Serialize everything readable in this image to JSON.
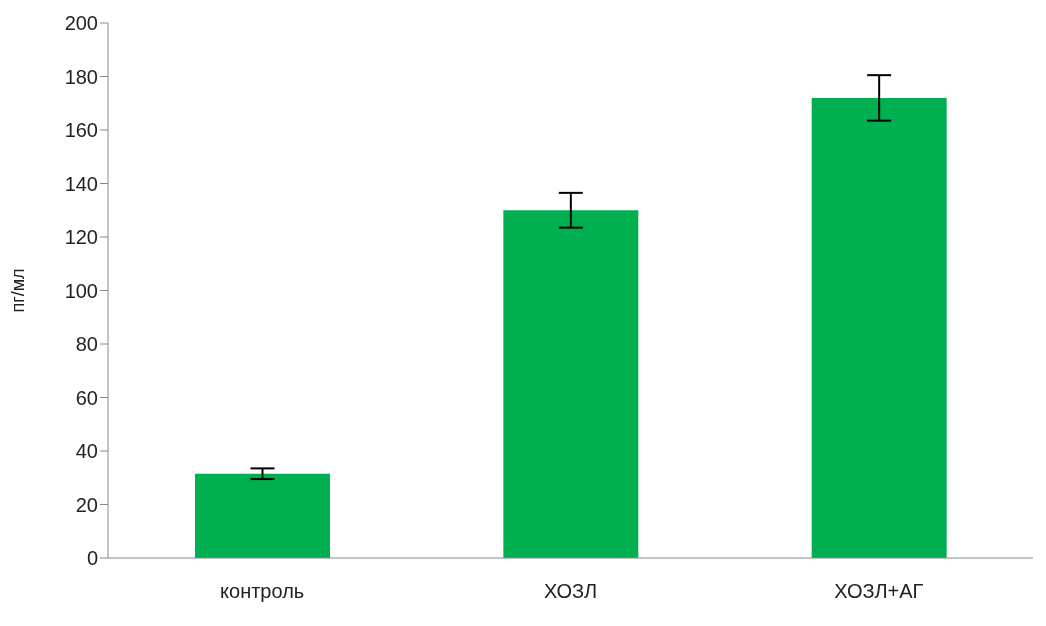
{
  "chart_data": {
    "type": "bar",
    "ylabel": "пг/мл",
    "categories": [
      "контроль",
      "ХОЗЛ",
      "ХОЗЛ+АГ"
    ],
    "values": [
      31.5,
      130,
      172
    ],
    "errors": [
      2,
      6.5,
      8.5
    ],
    "color": "#00b050",
    "ylim": [
      0,
      200
    ],
    "yticks": [
      0,
      20,
      40,
      60,
      80,
      100,
      120,
      140,
      160,
      180,
      200
    ],
    "grid": false,
    "legend": false
  }
}
